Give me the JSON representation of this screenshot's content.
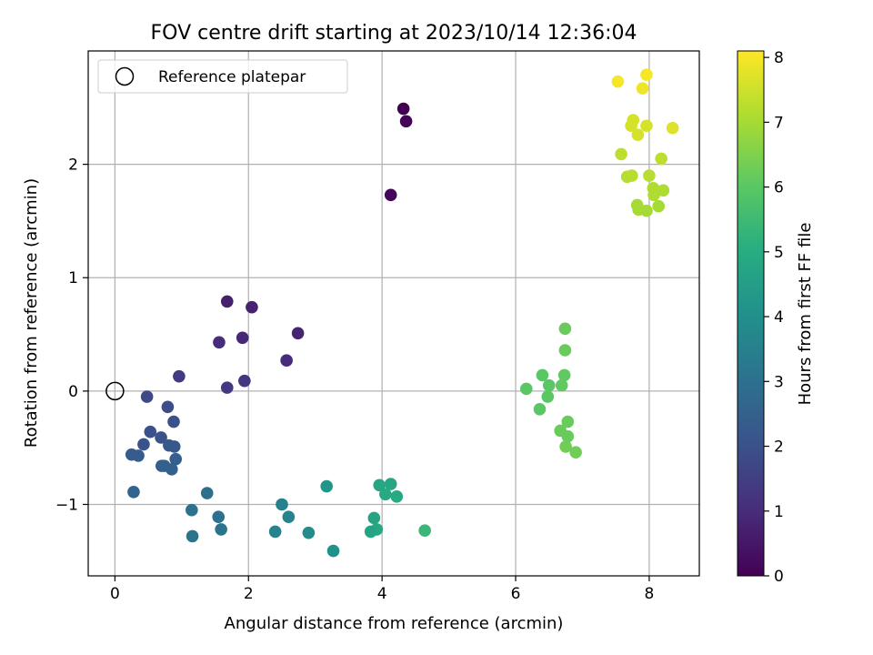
{
  "chart_data": {
    "type": "scatter",
    "title": "FOV centre drift starting at 2023/10/14 12:36:04",
    "xlabel": "Angular distance from reference (arcmin)",
    "ylabel": "Rotation from reference (arcmin)",
    "xlim": [
      -0.4,
      8.75
    ],
    "ylim": [
      -1.63,
      3.0
    ],
    "xticks": [
      0,
      2,
      4,
      6,
      8
    ],
    "yticks": [
      -1,
      0,
      1,
      2
    ],
    "grid": true,
    "legend": {
      "placement": "top-left",
      "entries": [
        "Reference platepar"
      ]
    },
    "reference_point": {
      "x": 0,
      "y": 0
    },
    "colorbar": {
      "label": "Hours from first FF file",
      "range": [
        0,
        8.1
      ],
      "ticks": [
        0,
        1,
        2,
        3,
        4,
        5,
        6,
        7,
        8
      ],
      "colormap": "viridis"
    },
    "points": [
      {
        "x": 4.32,
        "y": 2.49,
        "c": 0.0
      },
      {
        "x": 4.36,
        "y": 2.38,
        "c": 0.05
      },
      {
        "x": 4.13,
        "y": 1.73,
        "c": 0.15
      },
      {
        "x": 1.68,
        "y": 0.79,
        "c": 0.7
      },
      {
        "x": 2.05,
        "y": 0.74,
        "c": 0.75
      },
      {
        "x": 2.74,
        "y": 0.51,
        "c": 0.8
      },
      {
        "x": 1.91,
        "y": 0.47,
        "c": 0.9
      },
      {
        "x": 1.56,
        "y": 0.43,
        "c": 1.0
      },
      {
        "x": 2.57,
        "y": 0.27,
        "c": 1.0
      },
      {
        "x": 0.96,
        "y": 0.13,
        "c": 1.4
      },
      {
        "x": 1.94,
        "y": 0.09,
        "c": 1.2
      },
      {
        "x": 1.68,
        "y": 0.03,
        "c": 1.3
      },
      {
        "x": 0.48,
        "y": -0.05,
        "c": 1.8
      },
      {
        "x": 0.79,
        "y": -0.14,
        "c": 1.9
      },
      {
        "x": 0.88,
        "y": -0.27,
        "c": 2.0
      },
      {
        "x": 0.53,
        "y": -0.36,
        "c": 2.0
      },
      {
        "x": 0.69,
        "y": -0.41,
        "c": 2.1
      },
      {
        "x": 0.43,
        "y": -0.47,
        "c": 2.1
      },
      {
        "x": 0.81,
        "y": -0.48,
        "c": 2.2
      },
      {
        "x": 0.89,
        "y": -0.49,
        "c": 2.2
      },
      {
        "x": 0.25,
        "y": -0.56,
        "c": 2.3
      },
      {
        "x": 0.35,
        "y": -0.57,
        "c": 2.3
      },
      {
        "x": 0.91,
        "y": -0.6,
        "c": 2.4
      },
      {
        "x": 0.7,
        "y": -0.66,
        "c": 2.4
      },
      {
        "x": 0.74,
        "y": -0.66,
        "c": 2.5
      },
      {
        "x": 0.85,
        "y": -0.69,
        "c": 2.5
      },
      {
        "x": 0.28,
        "y": -0.89,
        "c": 2.6
      },
      {
        "x": 1.38,
        "y": -0.9,
        "c": 2.9
      },
      {
        "x": 1.15,
        "y": -1.05,
        "c": 3.0
      },
      {
        "x": 1.55,
        "y": -1.11,
        "c": 3.0
      },
      {
        "x": 1.59,
        "y": -1.22,
        "c": 3.1
      },
      {
        "x": 1.16,
        "y": -1.28,
        "c": 3.1
      },
      {
        "x": 2.5,
        "y": -1.0,
        "c": 3.5
      },
      {
        "x": 2.6,
        "y": -1.11,
        "c": 3.6
      },
      {
        "x": 2.4,
        "y": -1.24,
        "c": 3.6
      },
      {
        "x": 2.9,
        "y": -1.25,
        "c": 3.9
      },
      {
        "x": 3.17,
        "y": -0.84,
        "c": 4.2
      },
      {
        "x": 3.27,
        "y": -1.41,
        "c": 4.1
      },
      {
        "x": 3.96,
        "y": -0.83,
        "c": 4.8
      },
      {
        "x": 4.13,
        "y": -0.82,
        "c": 4.8
      },
      {
        "x": 4.05,
        "y": -0.91,
        "c": 4.9
      },
      {
        "x": 4.22,
        "y": -0.93,
        "c": 4.9
      },
      {
        "x": 3.88,
        "y": -1.12,
        "c": 4.7
      },
      {
        "x": 3.92,
        "y": -1.22,
        "c": 4.8
      },
      {
        "x": 3.83,
        "y": -1.24,
        "c": 4.7
      },
      {
        "x": 4.64,
        "y": -1.23,
        "c": 5.4
      },
      {
        "x": 6.74,
        "y": 0.55,
        "c": 6.2
      },
      {
        "x": 6.74,
        "y": 0.36,
        "c": 6.2
      },
      {
        "x": 6.4,
        "y": 0.14,
        "c": 6.0
      },
      {
        "x": 6.73,
        "y": 0.14,
        "c": 6.1
      },
      {
        "x": 6.5,
        "y": 0.05,
        "c": 6.0
      },
      {
        "x": 6.69,
        "y": 0.05,
        "c": 6.1
      },
      {
        "x": 6.16,
        "y": 0.02,
        "c": 6.0
      },
      {
        "x": 6.48,
        "y": -0.05,
        "c": 6.0
      },
      {
        "x": 6.36,
        "y": -0.16,
        "c": 6.0
      },
      {
        "x": 6.78,
        "y": -0.27,
        "c": 6.2
      },
      {
        "x": 6.67,
        "y": -0.35,
        "c": 6.2
      },
      {
        "x": 6.78,
        "y": -0.4,
        "c": 6.2
      },
      {
        "x": 6.75,
        "y": -0.49,
        "c": 6.3
      },
      {
        "x": 6.9,
        "y": -0.54,
        "c": 6.3
      },
      {
        "x": 7.96,
        "y": 2.79,
        "c": 8.0
      },
      {
        "x": 7.53,
        "y": 2.73,
        "c": 8.0
      },
      {
        "x": 7.9,
        "y": 2.67,
        "c": 7.9
      },
      {
        "x": 7.76,
        "y": 2.39,
        "c": 7.6
      },
      {
        "x": 7.73,
        "y": 2.34,
        "c": 7.6
      },
      {
        "x": 7.96,
        "y": 2.34,
        "c": 7.6
      },
      {
        "x": 8.35,
        "y": 2.32,
        "c": 7.7
      },
      {
        "x": 7.83,
        "y": 2.26,
        "c": 7.6
      },
      {
        "x": 7.58,
        "y": 2.09,
        "c": 7.3
      },
      {
        "x": 8.18,
        "y": 2.05,
        "c": 7.3
      },
      {
        "x": 7.67,
        "y": 1.89,
        "c": 7.2
      },
      {
        "x": 7.74,
        "y": 1.9,
        "c": 7.2
      },
      {
        "x": 8.0,
        "y": 1.9,
        "c": 7.2
      },
      {
        "x": 8.06,
        "y": 1.79,
        "c": 7.1
      },
      {
        "x": 8.21,
        "y": 1.77,
        "c": 7.1
      },
      {
        "x": 8.07,
        "y": 1.73,
        "c": 7.1
      },
      {
        "x": 7.82,
        "y": 1.64,
        "c": 7.0
      },
      {
        "x": 8.14,
        "y": 1.63,
        "c": 7.0
      },
      {
        "x": 7.84,
        "y": 1.6,
        "c": 7.0
      },
      {
        "x": 7.96,
        "y": 1.59,
        "c": 7.0
      }
    ]
  }
}
